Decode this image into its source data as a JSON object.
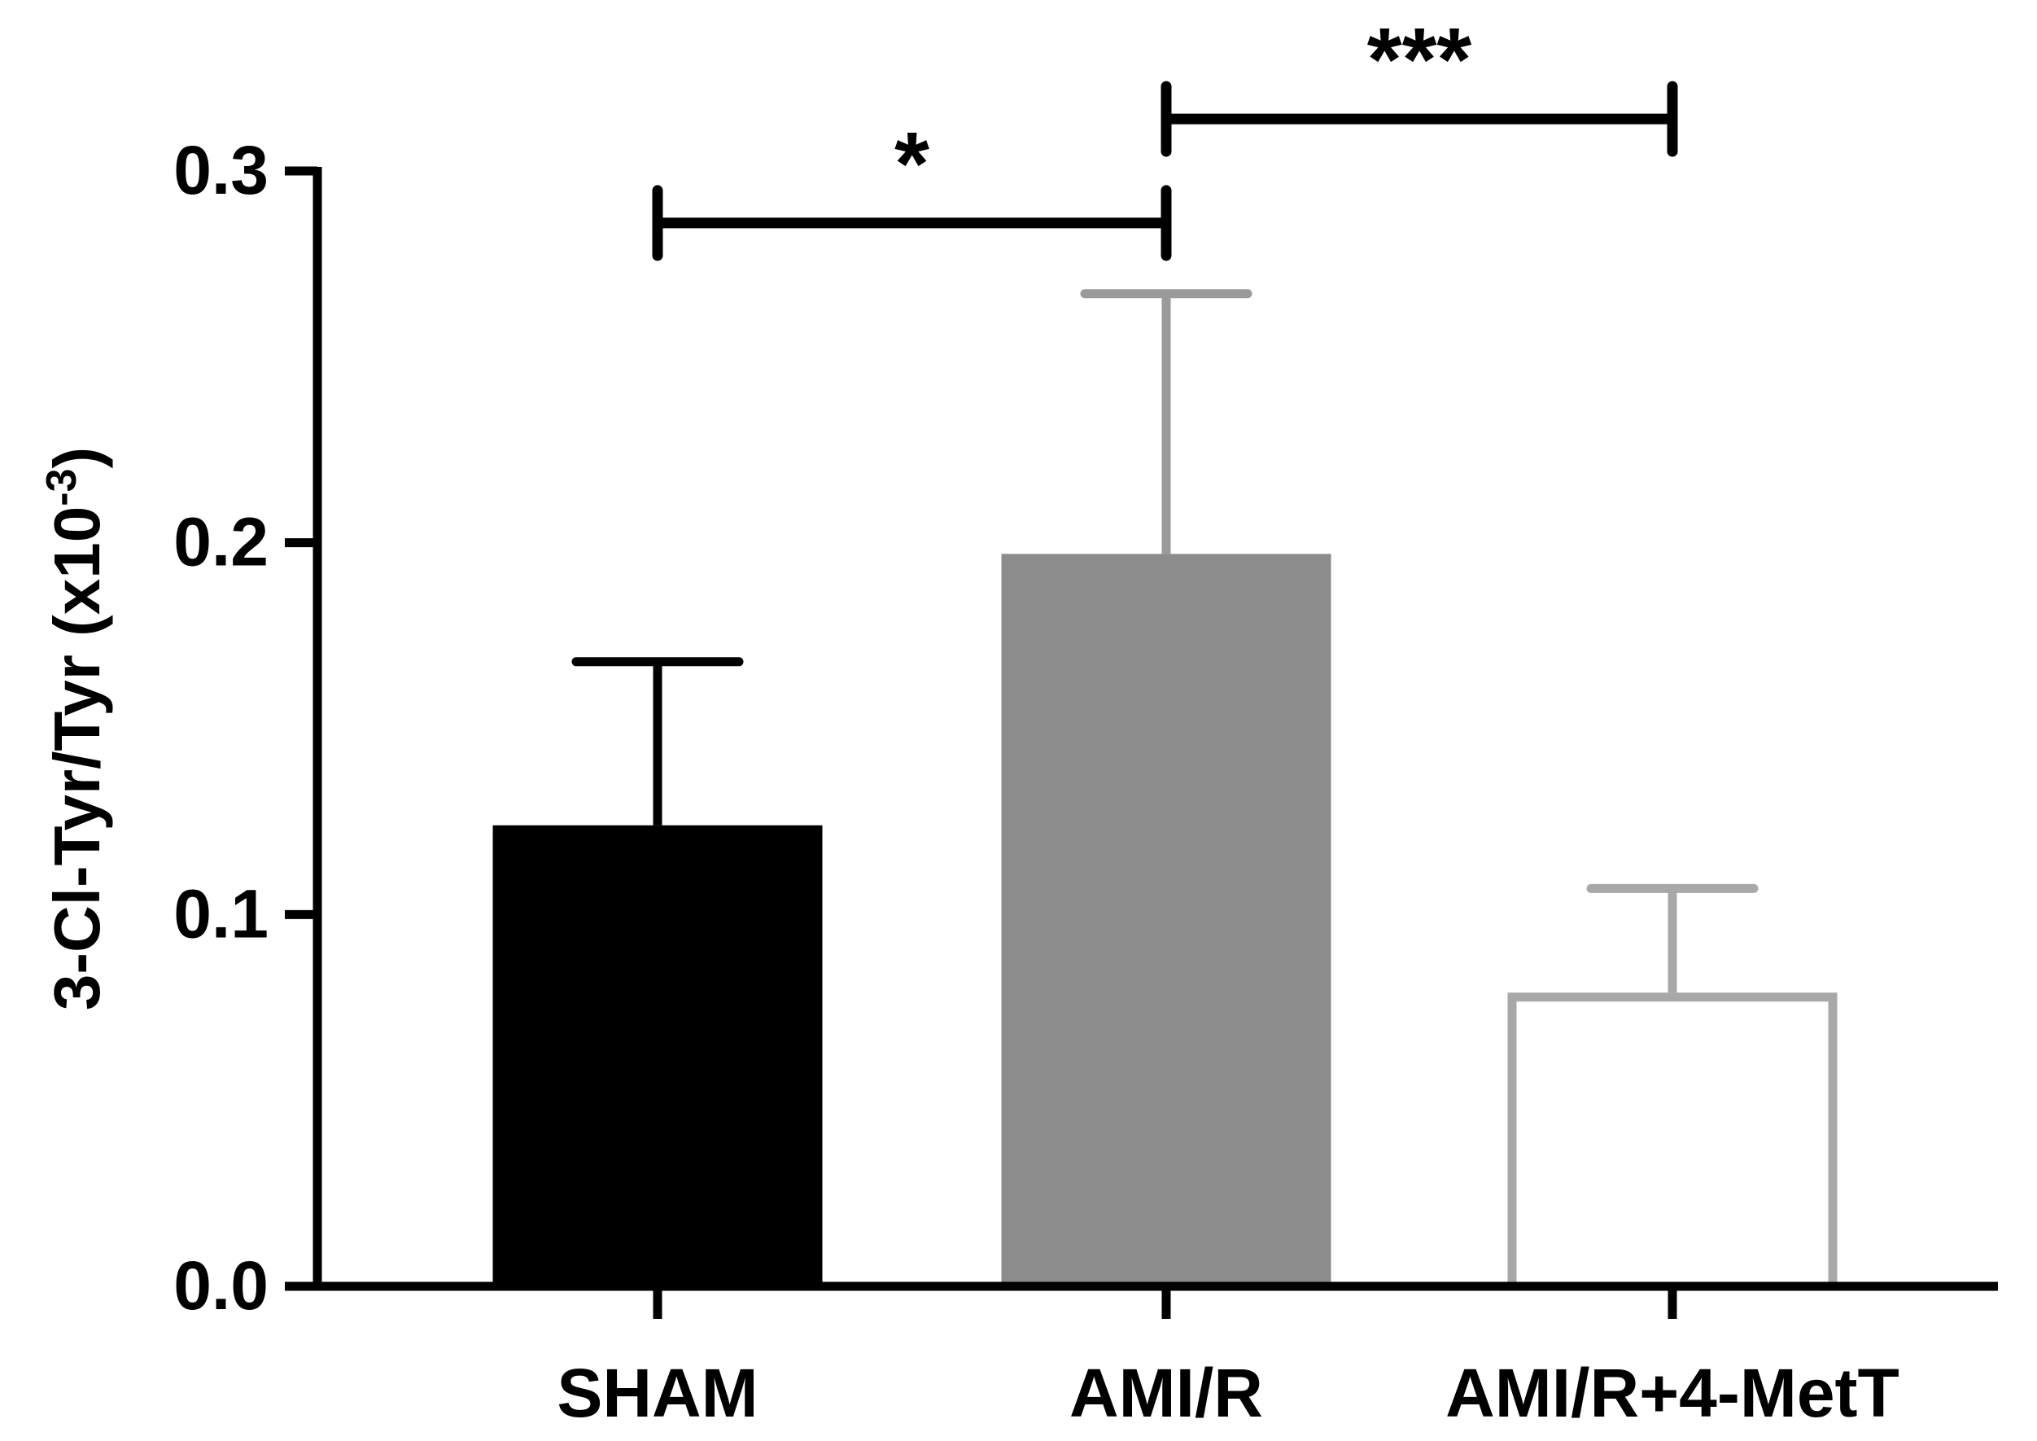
{
  "chart_data": {
    "type": "bar",
    "categories": [
      "SHAM",
      "AMI/R",
      "AMI/R+4-MetT"
    ],
    "values": [
      0.124,
      0.197,
      0.079
    ],
    "error_upper": [
      0.168,
      0.267,
      0.107
    ],
    "bar_styles": [
      {
        "fill": "#000000",
        "stroke": "#000000"
      },
      {
        "fill": "#8c8c8c",
        "stroke": "#8c8c8c"
      },
      {
        "fill": "#ffffff",
        "stroke": "#a8a8a8"
      }
    ],
    "error_colors": [
      "#000000",
      "#9a9a9a",
      "#a8a8a8"
    ],
    "ylabel": "3-Cl-Tyr/Tyr (x10",
    "ylabel_sup": "-3",
    "ylabel_close": ")",
    "ylim": [
      0,
      0.3
    ],
    "yticks": [
      "0.0",
      "0.1",
      "0.2",
      "0.3"
    ],
    "significance": [
      {
        "from": 0,
        "to": 1,
        "label": "*",
        "level": 0.286
      },
      {
        "from": 1,
        "to": 2,
        "label": "***",
        "level": 0.314
      }
    ],
    "grid": false,
    "legend": false
  }
}
